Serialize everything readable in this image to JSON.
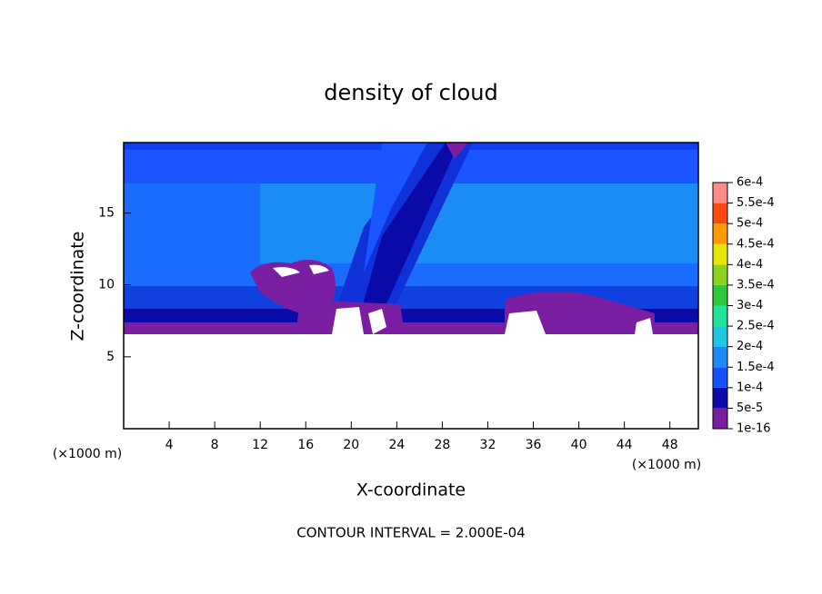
{
  "chart_data": {
    "type": "contour",
    "title": "density of cloud",
    "x_label": "X-coordinate",
    "y_label": "Z-coordinate",
    "x_unit_label": "(×1000 m)",
    "footer": "CONTOUR INTERVAL = 2.000E-04",
    "xlim": [
      0,
      50.5
    ],
    "xticks": [
      4,
      8,
      12,
      16,
      20,
      24,
      28,
      32,
      36,
      40,
      44,
      48
    ],
    "ylim": [
      0,
      19.9
    ],
    "yticks": [
      5,
      10,
      15
    ],
    "colorbar": {
      "levels": [
        {
          "value": 1e-16,
          "label": "1e-16"
        },
        {
          "value": 5e-05,
          "label": "5e-5"
        },
        {
          "value": 0.0001,
          "label": "1e-4"
        },
        {
          "value": 0.00015,
          "label": "1.5e-4"
        },
        {
          "value": 0.0002,
          "label": "2e-4"
        },
        {
          "value": 0.00025,
          "label": "2.5e-4"
        },
        {
          "value": 0.0003,
          "label": "3e-4"
        },
        {
          "value": 0.00035,
          "label": "3.5e-4"
        },
        {
          "value": 0.0004,
          "label": "4e-4"
        },
        {
          "value": 0.00045,
          "label": "4.5e-4"
        },
        {
          "value": 0.0005,
          "label": "5e-4"
        },
        {
          "value": 0.00055,
          "label": "5.5e-4"
        },
        {
          "value": 0.0006,
          "label": "6e-4"
        }
      ],
      "colors": [
        "#7a1fa2",
        "#0a0aa8",
        "#1552ff",
        "#1b8cf5",
        "#1ec8e0",
        "#20e39a",
        "#2ec83a",
        "#8cd41c",
        "#e6e600",
        "#ff9a00",
        "#ff4a10",
        "#ff8a8a"
      ]
    }
  }
}
